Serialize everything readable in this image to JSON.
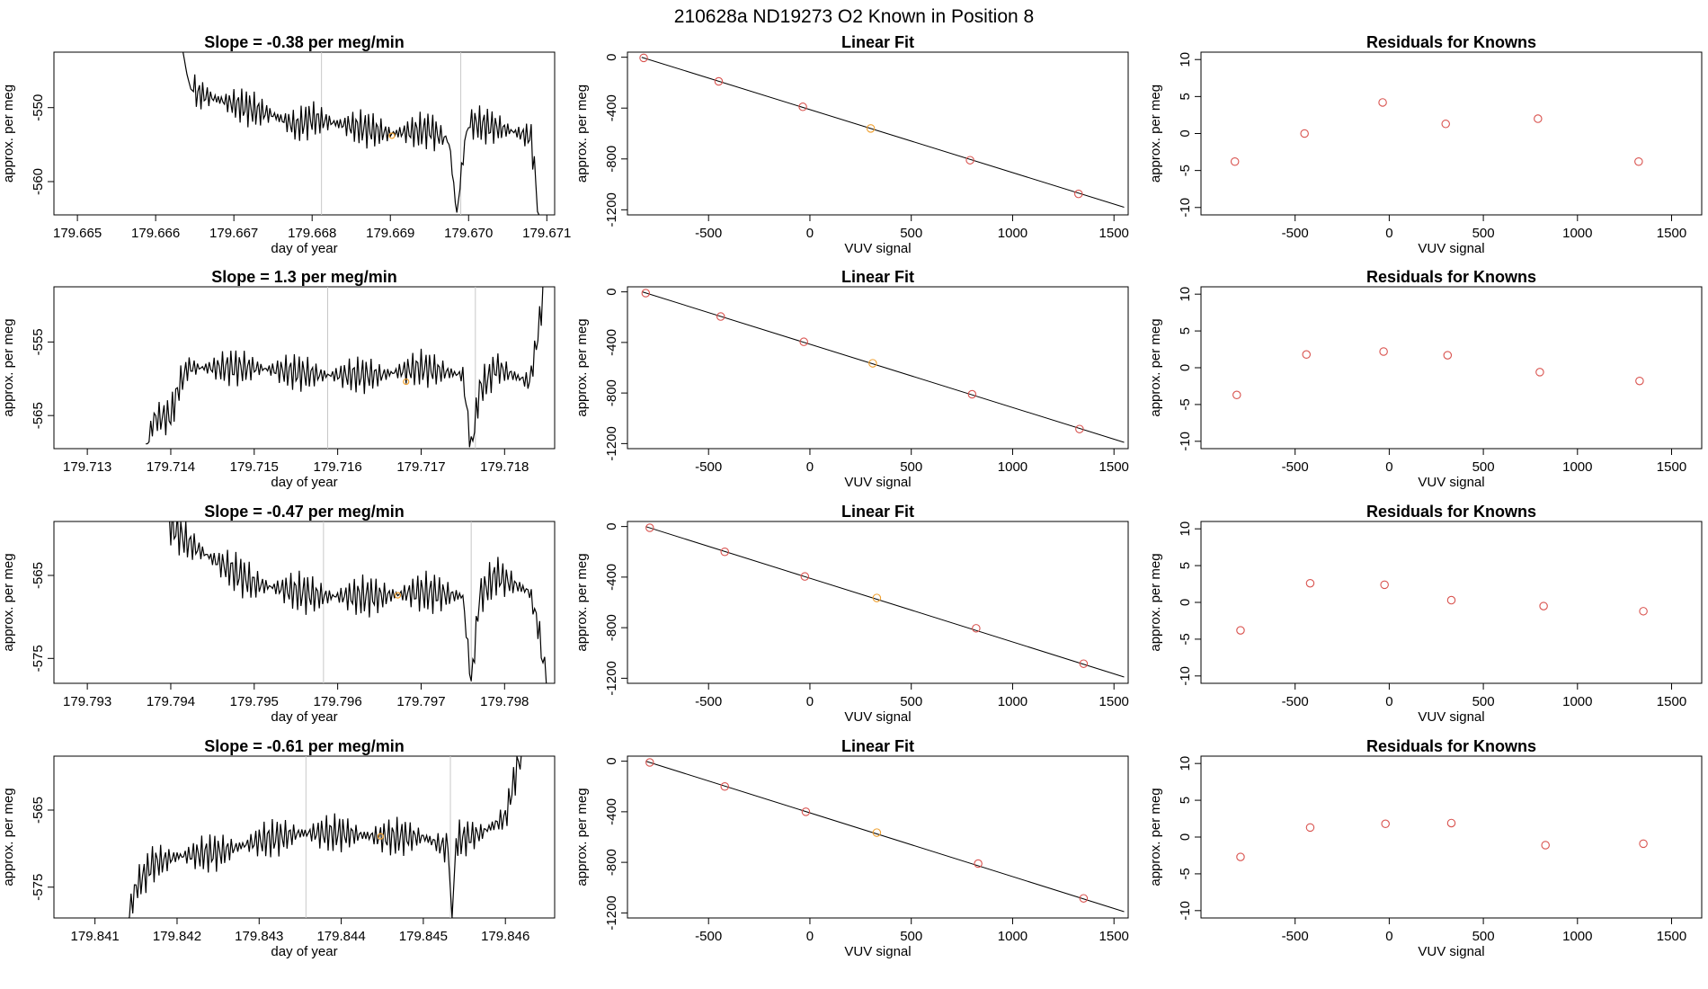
{
  "figure_title": "210628a      ND19273    O2 Known in Position  8",
  "colors": {
    "line": "#000000",
    "point": "#d9534f",
    "highlight": "#f0a030",
    "frame": "#000000",
    "guide": "#c8c8c8"
  },
  "chart_data": [
    {
      "panel": "1-ts",
      "type": "line",
      "title": "Slope =  -0.38  per meg/min",
      "xlabel": "day of year",
      "ylabel": "approx. per meg",
      "xlim": [
        179.6647,
        179.6711
      ],
      "ylim": [
        -564.5,
        -542.5
      ],
      "xticks": [
        "179.665",
        "179.666",
        "179.667",
        "179.668",
        "179.669",
        "179.670",
        "179.671"
      ],
      "yticks": [
        "-550",
        "-560"
      ],
      "vlines": [
        179.66812,
        179.6699
      ],
      "highlight": [
        179.66902,
        -553.8
      ],
      "x": [
        179.6663,
        179.66635,
        179.6664,
        179.66645,
        179.6665,
        179.667,
        179.6675,
        179.6678,
        179.668,
        179.6685,
        179.669,
        179.6695,
        179.66975,
        179.66985,
        179.66995,
        179.67,
        179.6705,
        179.6708,
        179.6709
      ],
      "y": [
        -540,
        -542.5,
        -545.5,
        -547.5,
        -548,
        -549.5,
        -551,
        -552.5,
        -551.5,
        -552.5,
        -553.5,
        -553,
        -554.5,
        -564.5,
        -554.5,
        -552,
        -553,
        -554,
        -564.5
      ]
    },
    {
      "panel": "1-fit",
      "type": "scatter",
      "title": "Linear Fit",
      "xlabel": "VUV signal",
      "ylabel": "approx. per meg",
      "xlim": [
        -900,
        1570
      ],
      "ylim": [
        -1240,
        40
      ],
      "xticks": [
        "-500",
        "0",
        "500",
        "1000",
        "1500"
      ],
      "yticks": [
        "0",
        "-400",
        "-800",
        "-1200"
      ],
      "x": [
        -820,
        -450,
        -35,
        300,
        790,
        1325
      ],
      "y": [
        -5,
        -190,
        -390,
        -560,
        -810,
        -1075
      ],
      "highlight_index": 3,
      "fit_line": [
        [
          -830,
          -0.5
        ],
        [
          1550,
          -1180
        ]
      ]
    },
    {
      "panel": "1-res",
      "type": "scatter",
      "title": "Residuals for Knowns",
      "xlabel": "VUV signal",
      "ylabel": "approx. per meg",
      "xlim": [
        -1000,
        1660
      ],
      "ylim": [
        -11,
        11
      ],
      "xticks": [
        "-500",
        "0",
        "500",
        "1000",
        "1500"
      ],
      "yticks": [
        "10",
        "5",
        "0",
        "-5",
        "-10"
      ],
      "x": [
        -820,
        -450,
        -35,
        300,
        790,
        1325
      ],
      "y": [
        -3.8,
        0,
        4.2,
        1.3,
        2,
        -3.8
      ]
    },
    {
      "panel": "2-ts",
      "type": "line",
      "title": "Slope =  1.3  per meg/min",
      "xlabel": "day of year",
      "ylabel": "approx. per meg",
      "xlim": [
        179.7126,
        179.7186
      ],
      "ylim": [
        -569.5,
        -547.5
      ],
      "xticks": [
        "179.713",
        "179.714",
        "179.715",
        "179.716",
        "179.717",
        "179.718"
      ],
      "yticks": [
        "-555",
        "-565"
      ],
      "vlines": [
        179.71588,
        179.71765
      ],
      "highlight": [
        179.71682,
        -560.4
      ],
      "x": [
        179.7137,
        179.7138,
        179.714,
        179.7141,
        179.7142,
        179.715,
        179.7158,
        179.7165,
        179.717,
        179.7175,
        179.7176,
        179.7177,
        179.7179,
        179.7183,
        179.7184,
        179.7185
      ],
      "y": [
        -569.5,
        -565.5,
        -565,
        -561,
        -558.5,
        -558.5,
        -559.5,
        -559.5,
        -558.5,
        -559.5,
        -569.5,
        -561.5,
        -558.5,
        -560.5,
        -554,
        -545
      ]
    },
    {
      "panel": "2-fit",
      "type": "scatter",
      "title": "Linear Fit",
      "xlabel": "VUV signal",
      "ylabel": "approx. per meg",
      "xlim": [
        -900,
        1570
      ],
      "ylim": [
        -1240,
        40
      ],
      "xticks": [
        "-500",
        "0",
        "500",
        "1000",
        "1500"
      ],
      "yticks": [
        "0",
        "-400",
        "-800",
        "-1200"
      ],
      "x": [
        -810,
        -440,
        -30,
        310,
        800,
        1330
      ],
      "y": [
        -10,
        -195,
        -395,
        -565,
        -810,
        -1085
      ],
      "highlight_index": 3,
      "fit_line": [
        [
          -825,
          -1
        ],
        [
          1550,
          -1190
        ]
      ]
    },
    {
      "panel": "2-res",
      "type": "scatter",
      "title": "Residuals for Knowns",
      "xlabel": "VUV signal",
      "ylabel": "approx. per meg",
      "xlim": [
        -1000,
        1660
      ],
      "ylim": [
        -11,
        11
      ],
      "xticks": [
        "-500",
        "0",
        "500",
        "1000",
        "1500"
      ],
      "yticks": [
        "10",
        "5",
        "0",
        "-5",
        "-10"
      ],
      "x": [
        -810,
        -440,
        -30,
        310,
        800,
        1330
      ],
      "y": [
        -3.7,
        1.8,
        2.2,
        1.7,
        -0.6,
        -1.8
      ]
    },
    {
      "panel": "3-ts",
      "type": "line",
      "title": "Slope =  -0.47  per meg/min",
      "xlabel": "day of year",
      "ylabel": "approx. per meg",
      "xlim": [
        179.7926,
        179.7986
      ],
      "ylim": [
        -578,
        -558.5
      ],
      "xticks": [
        "179.793",
        "179.794",
        "179.795",
        "179.796",
        "179.797",
        "179.798"
      ],
      "yticks": [
        "-565",
        "-575"
      ],
      "vlines": [
        179.79583,
        179.7976
      ],
      "highlight": [
        179.79672,
        -567.4
      ],
      "x": [
        179.79395,
        179.794,
        179.7942,
        179.7945,
        179.795,
        179.7958,
        179.7965,
        179.797,
        179.7975,
        179.7976,
        179.7977,
        179.7979,
        179.7983,
        179.7984,
        179.7985
      ],
      "y": [
        -556,
        -559,
        -561,
        -563,
        -566,
        -567.5,
        -567.5,
        -567,
        -567.5,
        -578,
        -567.5,
        -565,
        -567,
        -571,
        -578
      ]
    },
    {
      "panel": "3-fit",
      "type": "scatter",
      "title": "Linear Fit",
      "xlabel": "VUV signal",
      "ylabel": "approx. per meg",
      "xlim": [
        -900,
        1570
      ],
      "ylim": [
        -1240,
        40
      ],
      "xticks": [
        "-500",
        "0",
        "500",
        "1000",
        "1500"
      ],
      "yticks": [
        "0",
        "-400",
        "-800",
        "-1200"
      ],
      "x": [
        -790,
        -420,
        -25,
        330,
        820,
        1350
      ],
      "y": [
        -10,
        -200,
        -395,
        -565,
        -805,
        -1085
      ],
      "highlight_index": 3,
      "fit_line": [
        [
          -810,
          -0.5
        ],
        [
          1550,
          -1190
        ]
      ]
    },
    {
      "panel": "3-res",
      "type": "scatter",
      "title": "Residuals for Knowns",
      "xlabel": "VUV signal",
      "ylabel": "approx. per meg",
      "xlim": [
        -1000,
        1660
      ],
      "ylim": [
        -11,
        11
      ],
      "xticks": [
        "-500",
        "0",
        "500",
        "1000",
        "1500"
      ],
      "yticks": [
        "10",
        "5",
        "0",
        "-5",
        "-10"
      ],
      "x": [
        -790,
        -420,
        -25,
        330,
        820,
        1350
      ],
      "y": [
        -3.8,
        2.6,
        2.4,
        0.3,
        -0.5,
        -1.2
      ]
    },
    {
      "panel": "4-ts",
      "type": "line",
      "title": "Slope =  -0.61  per meg/min",
      "xlabel": "day of year",
      "ylabel": "approx. per meg",
      "xlim": [
        179.8405,
        179.8466
      ],
      "ylim": [
        -579,
        -558
      ],
      "xticks": [
        "179.841",
        "179.842",
        "179.843",
        "179.844",
        "179.845",
        "179.846"
      ],
      "yticks": [
        "-565",
        "-575"
      ],
      "vlines": [
        179.84357,
        179.84533
      ],
      "highlight": [
        179.84448,
        -568.4
      ],
      "x": [
        179.8414,
        179.8415,
        179.8417,
        179.842,
        179.8425,
        179.843,
        179.8435,
        179.844,
        179.8445,
        179.845,
        179.8453,
        179.84535,
        179.8454,
        179.8457,
        179.846,
        179.8462
      ],
      "y": [
        -579,
        -575,
        -572,
        -571,
        -570.5,
        -569,
        -568,
        -568,
        -568.5,
        -568.5,
        -570,
        -579,
        -569,
        -568,
        -566,
        -557
      ]
    },
    {
      "panel": "4-fit",
      "type": "scatter",
      "title": "Linear Fit",
      "xlabel": "VUV signal",
      "ylabel": "approx. per meg",
      "xlim": [
        -900,
        1570
      ],
      "ylim": [
        -1240,
        40
      ],
      "xticks": [
        "-500",
        "0",
        "500",
        "1000",
        "1500"
      ],
      "yticks": [
        "0",
        "-400",
        "-800",
        "-1200"
      ],
      "x": [
        -790,
        -420,
        -20,
        330,
        830,
        1350
      ],
      "y": [
        -10,
        -200,
        -400,
        -565,
        -810,
        -1085
      ],
      "highlight_index": 3,
      "fit_line": [
        [
          -810,
          0
        ],
        [
          1550,
          -1190
        ]
      ]
    },
    {
      "panel": "4-res",
      "type": "scatter",
      "title": "Residuals for Knowns",
      "xlabel": "VUV signal",
      "ylabel": "approx. per meg",
      "xlim": [
        -1000,
        1660
      ],
      "ylim": [
        -11,
        11
      ],
      "xticks": [
        "-500",
        "0",
        "500",
        "1000",
        "1500"
      ],
      "yticks": [
        "10",
        "5",
        "0",
        "-5",
        "-10"
      ],
      "x": [
        -790,
        -420,
        -20,
        330,
        830,
        1350
      ],
      "y": [
        -2.7,
        1.3,
        1.8,
        1.9,
        -1.1,
        -0.9
      ]
    }
  ]
}
